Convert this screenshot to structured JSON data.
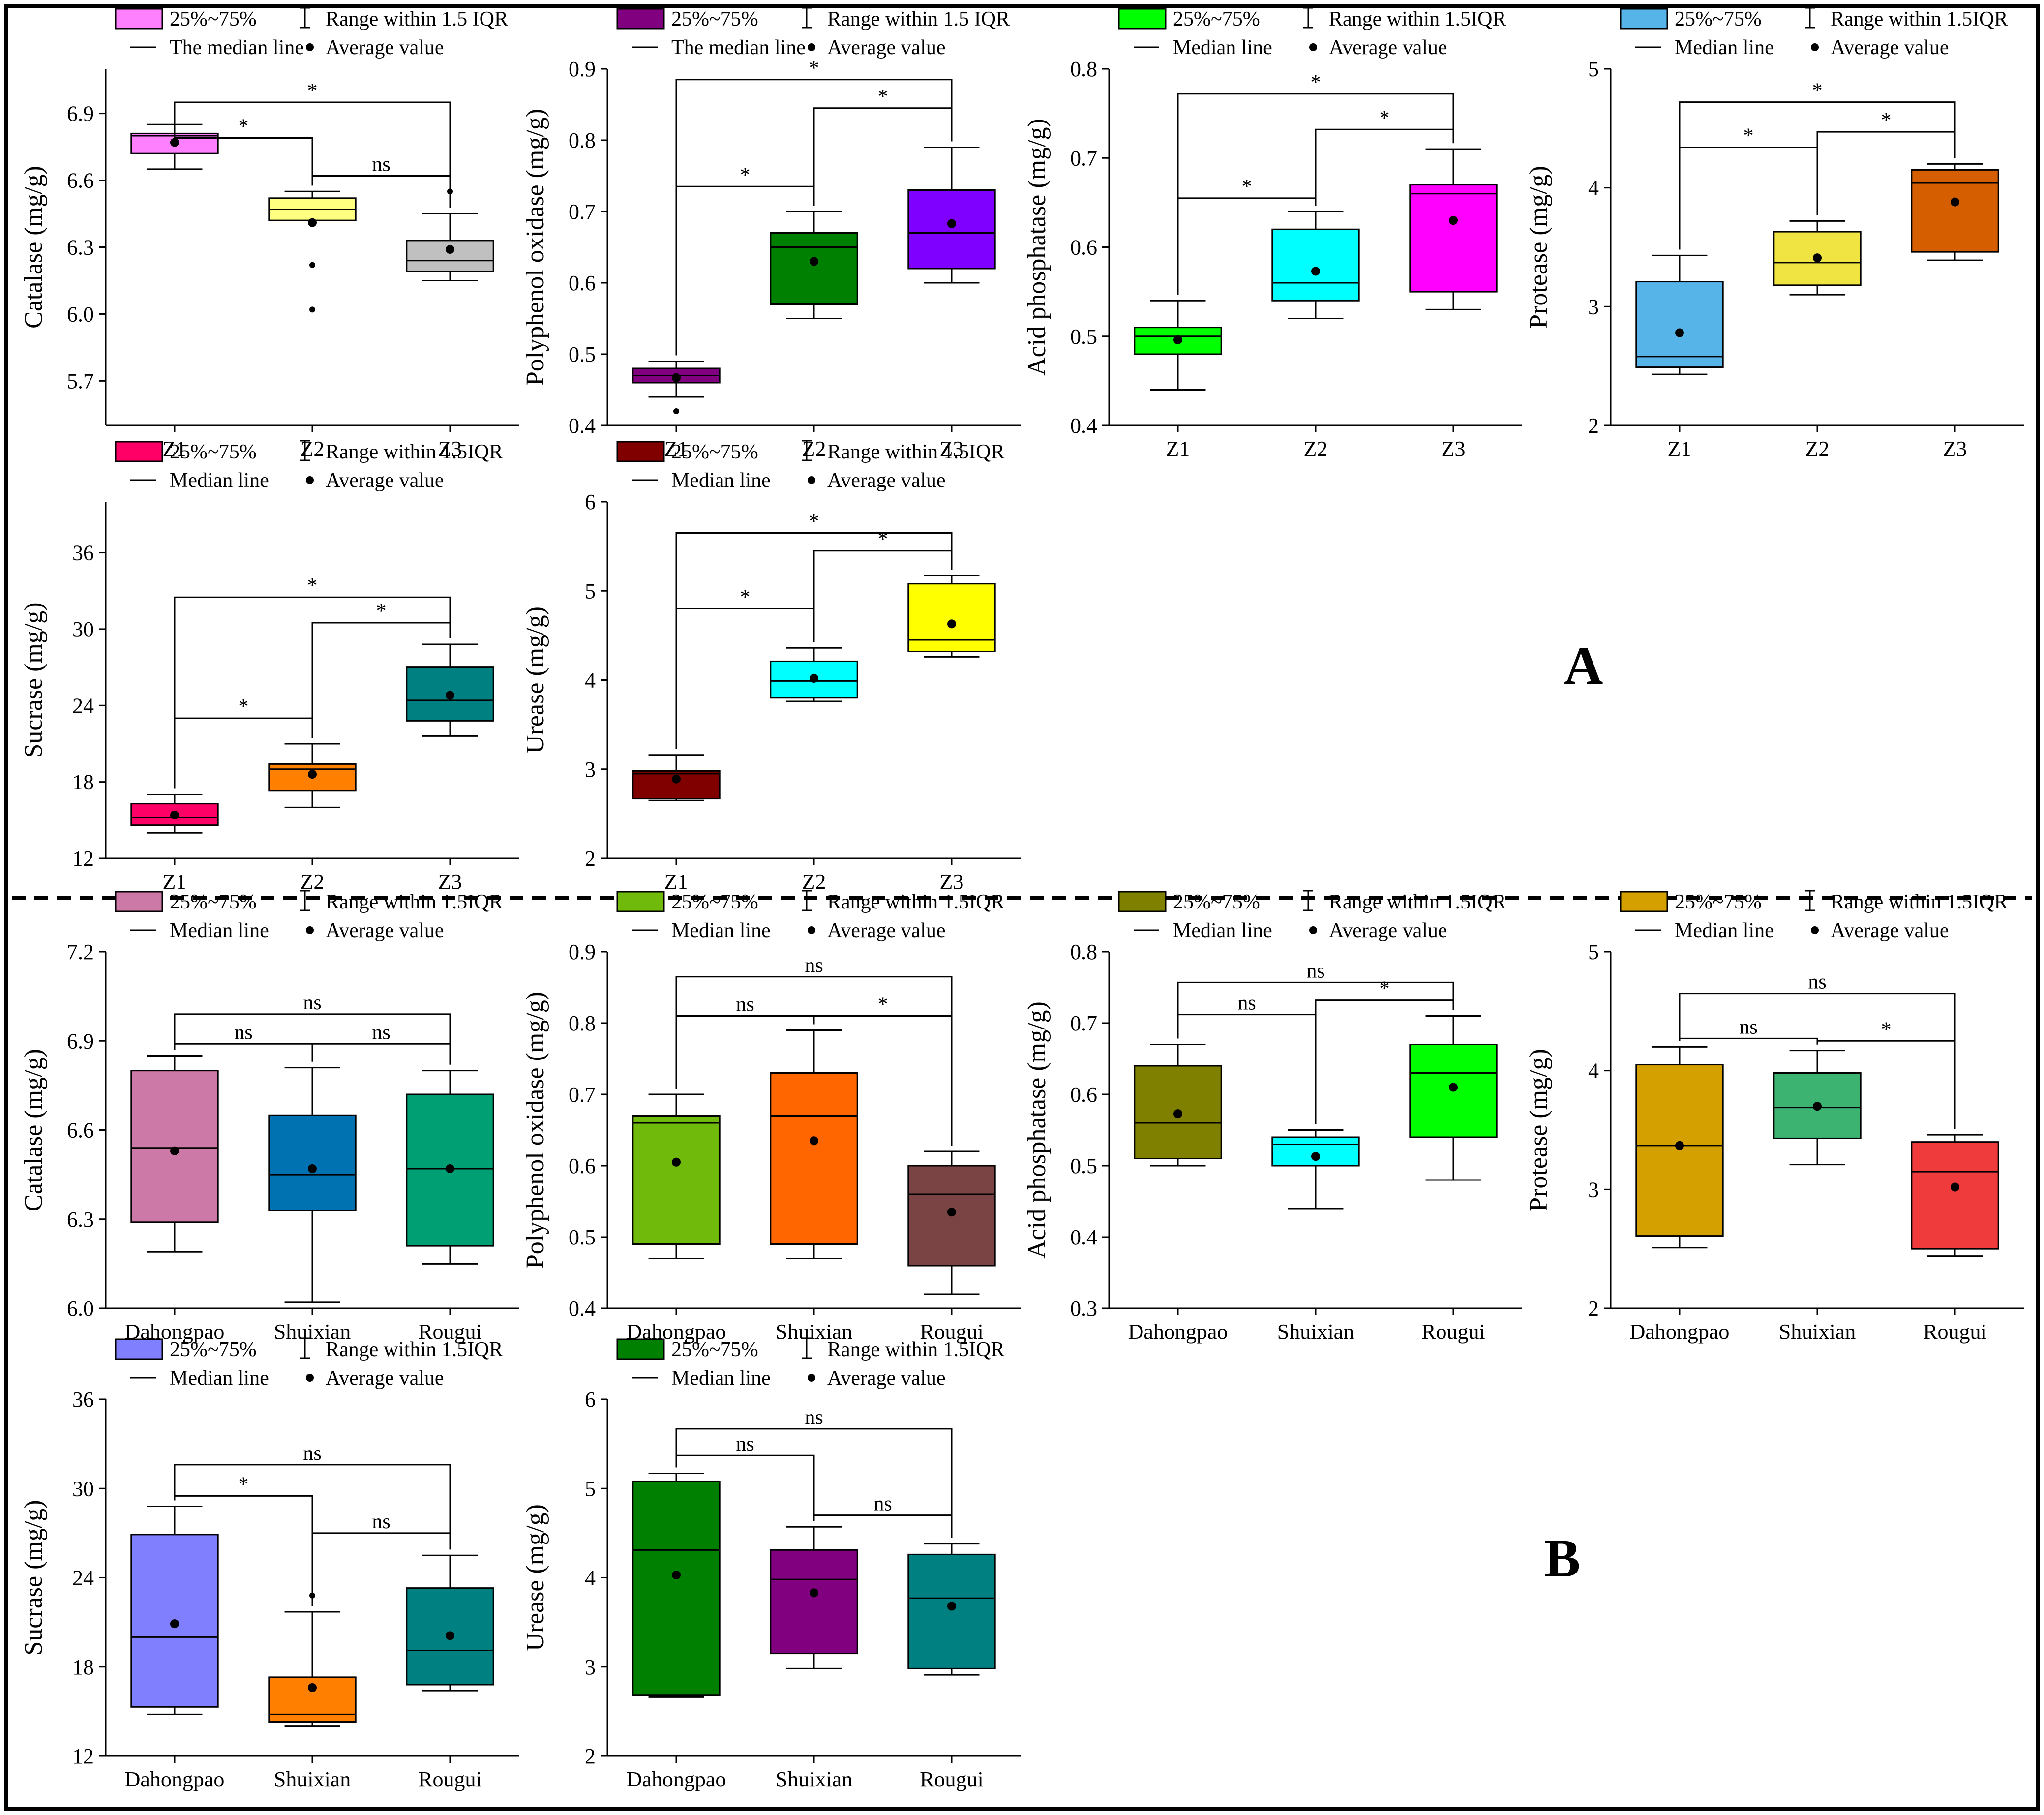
{
  "panel_letters": [
    "A",
    "B"
  ],
  "legend_symbols": {
    "box": "■",
    "whisker": "⌶",
    "median": "—",
    "mean": "●"
  },
  "chart_data": [
    {
      "id": "A-catalase",
      "type": "box",
      "panel": "A",
      "ylabel": "Catalase (mg/g)",
      "ylim": [
        5.5,
        7.1
      ],
      "yticks": [
        "5.7",
        "6.0",
        "6.3",
        "6.6",
        "6.9"
      ],
      "categories": [
        "Z1",
        "Z2",
        "Z3"
      ],
      "legend": [
        "25%~75%",
        "Range within 1.5 IQR",
        "The median line",
        "Average value"
      ],
      "boxes": [
        {
          "q1": 6.72,
          "q3": 6.81,
          "median": 6.8,
          "mean": 6.77,
          "lo": 6.65,
          "hi": 6.85,
          "outliers": [],
          "color": "#ff80ff"
        },
        {
          "q1": 6.42,
          "q3": 6.52,
          "median": 6.47,
          "mean": 6.41,
          "lo": 6.42,
          "hi": 6.55,
          "outliers": [
            6.22,
            6.02
          ],
          "color": "#ffff80"
        },
        {
          "q1": 6.19,
          "q3": 6.33,
          "median": 6.24,
          "mean": 6.29,
          "lo": 6.15,
          "hi": 6.45,
          "outliers": [
            6.55
          ],
          "color": "#c0c0c0"
        }
      ],
      "brackets": [
        {
          "from": 0,
          "to": 1,
          "label": "*",
          "y": 6.79
        },
        {
          "from": 1,
          "to": 2,
          "label": "ns",
          "y": 6.62
        },
        {
          "from": 0,
          "to": 2,
          "label": "*",
          "y": 6.95
        }
      ]
    },
    {
      "id": "A-polyphenol-oxidase",
      "type": "box",
      "panel": "A",
      "ylabel": "Polyphenol oxidase (mg/g)",
      "ylim": [
        0.4,
        0.9
      ],
      "yticks": [
        "0.4",
        "0.5",
        "0.6",
        "0.7",
        "0.8",
        "0.9"
      ],
      "categories": [
        "Z1",
        "Z2",
        "Z3"
      ],
      "legend": [
        "25%~75%",
        "Range within 1.5 IQR",
        "The median line",
        "Average value"
      ],
      "boxes": [
        {
          "q1": 0.46,
          "q3": 0.48,
          "median": 0.47,
          "mean": 0.467,
          "lo": 0.44,
          "hi": 0.49,
          "outliers": [
            0.42
          ],
          "color": "#800080"
        },
        {
          "q1": 0.57,
          "q3": 0.67,
          "median": 0.65,
          "mean": 0.63,
          "lo": 0.55,
          "hi": 0.7,
          "outliers": [],
          "color": "#008000"
        },
        {
          "q1": 0.62,
          "q3": 0.73,
          "median": 0.67,
          "mean": 0.683,
          "lo": 0.6,
          "hi": 0.79,
          "outliers": [],
          "color": "#8000ff"
        }
      ],
      "brackets": [
        {
          "from": 0,
          "to": 1,
          "label": "*",
          "y": 0.735
        },
        {
          "from": 1,
          "to": 2,
          "label": "*",
          "y": 0.845
        },
        {
          "from": 0,
          "to": 2,
          "label": "*",
          "y": 0.885
        }
      ]
    },
    {
      "id": "A-acid-phosphatase",
      "type": "box",
      "panel": "A",
      "ylabel": "Acid phosphatase (mg/g)",
      "ylim": [
        0.4,
        0.8
      ],
      "yticks": [
        "0.4",
        "0.5",
        "0.6",
        "0.7",
        "0.8"
      ],
      "categories": [
        "Z1",
        "Z2",
        "Z3"
      ],
      "legend": [
        "25%~75%",
        "Range within 1.5IQR",
        "Median line",
        "Average value"
      ],
      "boxes": [
        {
          "q1": 0.48,
          "q3": 0.51,
          "median": 0.5,
          "mean": 0.496,
          "lo": 0.44,
          "hi": 0.54,
          "outliers": [],
          "color": "#00ff00"
        },
        {
          "q1": 0.54,
          "q3": 0.62,
          "median": 0.56,
          "mean": 0.573,
          "lo": 0.52,
          "hi": 0.64,
          "outliers": [],
          "color": "#00ffff"
        },
        {
          "q1": 0.55,
          "q3": 0.67,
          "median": 0.66,
          "mean": 0.63,
          "lo": 0.53,
          "hi": 0.71,
          "outliers": [],
          "color": "#ff00ff"
        }
      ],
      "brackets": [
        {
          "from": 0,
          "to": 1,
          "label": "*",
          "y": 0.655
        },
        {
          "from": 1,
          "to": 2,
          "label": "*",
          "y": 0.732
        },
        {
          "from": 0,
          "to": 2,
          "label": "*",
          "y": 0.772
        }
      ]
    },
    {
      "id": "A-protease",
      "type": "box",
      "panel": "A",
      "ylabel": "Protease (mg/g)",
      "ylim": [
        2,
        5
      ],
      "yticks": [
        "2",
        "3",
        "4",
        "5"
      ],
      "categories": [
        "Z1",
        "Z2",
        "Z3"
      ],
      "legend": [
        "25%~75%",
        "Range within 1.5IQR",
        "Median line",
        "Average value"
      ],
      "boxes": [
        {
          "q1": 2.49,
          "q3": 3.21,
          "median": 2.58,
          "mean": 2.78,
          "lo": 2.43,
          "hi": 3.43,
          "outliers": [],
          "color": "#56b4e9"
        },
        {
          "q1": 3.18,
          "q3": 3.63,
          "median": 3.37,
          "mean": 3.41,
          "lo": 3.1,
          "hi": 3.72,
          "outliers": [],
          "color": "#f0e442"
        },
        {
          "q1": 3.46,
          "q3": 4.15,
          "median": 4.04,
          "mean": 3.88,
          "lo": 3.39,
          "hi": 4.2,
          "outliers": [],
          "color": "#d55e00"
        }
      ],
      "brackets": [
        {
          "from": 0,
          "to": 1,
          "label": "*",
          "y": 4.34
        },
        {
          "from": 1,
          "to": 2,
          "label": "*",
          "y": 4.47
        },
        {
          "from": 0,
          "to": 2,
          "label": "*",
          "y": 4.72
        }
      ]
    },
    {
      "id": "A-sucrase",
      "type": "box",
      "panel": "A",
      "ylabel": "Sucrase (mg/g)",
      "ylim": [
        12,
        40
      ],
      "yticks": [
        "12",
        "18",
        "24",
        "30",
        "36"
      ],
      "categories": [
        "Z1",
        "Z2",
        "Z3"
      ],
      "legend": [
        "25%~75%",
        "Range within 1.5IQR",
        "Median line",
        "Average value"
      ],
      "boxes": [
        {
          "q1": 14.6,
          "q3": 16.3,
          "median": 15.2,
          "mean": 15.4,
          "lo": 14.0,
          "hi": 17.0,
          "outliers": [],
          "color": "#ff0066"
        },
        {
          "q1": 17.3,
          "q3": 19.4,
          "median": 19.0,
          "mean": 18.6,
          "lo": 16.0,
          "hi": 21.0,
          "outliers": [],
          "color": "#ff8000"
        },
        {
          "q1": 22.8,
          "q3": 27.0,
          "median": 24.4,
          "mean": 24.8,
          "lo": 21.6,
          "hi": 28.8,
          "outliers": [],
          "color": "#008080"
        }
      ],
      "brackets": [
        {
          "from": 0,
          "to": 1,
          "label": "*",
          "y": 23.0
        },
        {
          "from": 1,
          "to": 2,
          "label": "*",
          "y": 30.5
        },
        {
          "from": 0,
          "to": 2,
          "label": "*",
          "y": 32.5
        }
      ]
    },
    {
      "id": "A-urease",
      "type": "box",
      "panel": "A",
      "ylabel": "Urease (mg/g)",
      "ylim": [
        2,
        6
      ],
      "yticks": [
        "2",
        "3",
        "4",
        "5",
        "6"
      ],
      "categories": [
        "Z1",
        "Z2",
        "Z3"
      ],
      "legend": [
        "25%~75%",
        "Range within 1.5IQR",
        "Median line",
        "Average value"
      ],
      "boxes": [
        {
          "q1": 2.67,
          "q3": 2.98,
          "median": 2.95,
          "mean": 2.89,
          "lo": 2.65,
          "hi": 3.16,
          "outliers": [],
          "color": "#800000"
        },
        {
          "q1": 3.8,
          "q3": 4.21,
          "median": 3.99,
          "mean": 4.02,
          "lo": 3.76,
          "hi": 4.36,
          "outliers": [],
          "color": "#00ffff"
        },
        {
          "q1": 4.32,
          "q3": 5.08,
          "median": 4.45,
          "mean": 4.63,
          "lo": 4.26,
          "hi": 5.17,
          "outliers": [],
          "color": "#ffff00"
        }
      ],
      "brackets": [
        {
          "from": 0,
          "to": 1,
          "label": "*",
          "y": 4.8
        },
        {
          "from": 1,
          "to": 2,
          "label": "*",
          "y": 5.45
        },
        {
          "from": 0,
          "to": 2,
          "label": "*",
          "y": 5.65
        }
      ]
    },
    {
      "id": "B-catalase",
      "type": "box",
      "panel": "B",
      "ylabel": "Catalase (mg/g)",
      "ylim": [
        6.0,
        7.2
      ],
      "yticks": [
        "6.0",
        "6.3",
        "6.6",
        "6.9",
        "7.2"
      ],
      "categories": [
        "Dahongpao",
        "Shuixian",
        "Rougui"
      ],
      "legend": [
        "25%~75%",
        "Range within 1.5IQR",
        "Median line",
        "Average value"
      ],
      "boxes": [
        {
          "q1": 6.29,
          "q3": 6.8,
          "median": 6.54,
          "mean": 6.53,
          "lo": 6.19,
          "hi": 6.85,
          "outliers": [],
          "color": "#cc79a7"
        },
        {
          "q1": 6.33,
          "q3": 6.65,
          "median": 6.45,
          "mean": 6.47,
          "lo": 6.02,
          "hi": 6.81,
          "outliers": [],
          "color": "#0072b2"
        },
        {
          "q1": 6.21,
          "q3": 6.72,
          "median": 6.47,
          "mean": 6.47,
          "lo": 6.15,
          "hi": 6.8,
          "outliers": [],
          "color": "#009e73"
        }
      ],
      "brackets": [
        {
          "from": 0,
          "to": 1,
          "label": "ns",
          "y": 6.89
        },
        {
          "from": 1,
          "to": 2,
          "label": "ns",
          "y": 6.89
        },
        {
          "from": 0,
          "to": 2,
          "label": "ns",
          "y": 6.99
        }
      ]
    },
    {
      "id": "B-polyphenol-oxidase",
      "type": "box",
      "panel": "B",
      "ylabel": "Polyphenol oxidase (mg/g)",
      "ylim": [
        0.4,
        0.9
      ],
      "yticks": [
        "0.4",
        "0.5",
        "0.6",
        "0.7",
        "0.8",
        "0.9"
      ],
      "categories": [
        "Dahongpao",
        "Shuixian",
        "Rougui"
      ],
      "legend": [
        "25%~75%",
        "Range within 1.5IQR",
        "Median line",
        "Average value"
      ],
      "boxes": [
        {
          "q1": 0.49,
          "q3": 0.67,
          "median": 0.66,
          "mean": 0.605,
          "lo": 0.47,
          "hi": 0.7,
          "outliers": [],
          "color": "#6fba0a"
        },
        {
          "q1": 0.49,
          "q3": 0.73,
          "median": 0.67,
          "mean": 0.635,
          "lo": 0.47,
          "hi": 0.79,
          "outliers": [],
          "color": "#ff6600"
        },
        {
          "q1": 0.46,
          "q3": 0.6,
          "median": 0.56,
          "mean": 0.535,
          "lo": 0.42,
          "hi": 0.62,
          "outliers": [],
          "color": "#7b4444"
        }
      ],
      "brackets": [
        {
          "from": 0,
          "to": 1,
          "label": "ns",
          "y": 0.81
        },
        {
          "from": 1,
          "to": 2,
          "label": "*",
          "y": 0.81
        },
        {
          "from": 0,
          "to": 2,
          "label": "ns",
          "y": 0.865
        }
      ]
    },
    {
      "id": "B-acid-phosphatase",
      "type": "box",
      "panel": "B",
      "ylabel": "Acid phosphatase (mg/g)",
      "ylim": [
        0.3,
        0.8
      ],
      "yticks": [
        "0.3",
        "0.4",
        "0.5",
        "0.6",
        "0.7",
        "0.8"
      ],
      "categories": [
        "Dahongpao",
        "Shuixian",
        "Rougui"
      ],
      "legend": [
        "25%~75%",
        "Range within 1.5IQR",
        "Median line",
        "Average value"
      ],
      "boxes": [
        {
          "q1": 0.51,
          "q3": 0.64,
          "median": 0.56,
          "mean": 0.573,
          "lo": 0.5,
          "hi": 0.67,
          "outliers": [],
          "color": "#808000"
        },
        {
          "q1": 0.5,
          "q3": 0.54,
          "median": 0.53,
          "mean": 0.513,
          "lo": 0.44,
          "hi": 0.55,
          "outliers": [],
          "color": "#00ffff"
        },
        {
          "q1": 0.54,
          "q3": 0.67,
          "median": 0.63,
          "mean": 0.61,
          "lo": 0.48,
          "hi": 0.71,
          "outliers": [],
          "color": "#00ff00"
        }
      ],
      "brackets": [
        {
          "from": 0,
          "to": 1,
          "label": "ns",
          "y": 0.712
        },
        {
          "from": 1,
          "to": 2,
          "label": "*",
          "y": 0.732
        },
        {
          "from": 0,
          "to": 2,
          "label": "ns",
          "y": 0.757
        }
      ]
    },
    {
      "id": "B-protease",
      "type": "box",
      "panel": "B",
      "ylabel": "Protease (mg/g)",
      "ylim": [
        2,
        5
      ],
      "yticks": [
        "2",
        "3",
        "4",
        "5"
      ],
      "categories": [
        "Dahongpao",
        "Shuixian",
        "Rougui"
      ],
      "legend": [
        "25%~75%",
        "Range within 1.5IQR",
        "Median line",
        "Average value"
      ],
      "boxes": [
        {
          "q1": 2.61,
          "q3": 4.05,
          "median": 3.37,
          "mean": 3.37,
          "lo": 2.51,
          "hi": 4.2,
          "outliers": [],
          "color": "#d4a000"
        },
        {
          "q1": 3.43,
          "q3": 3.98,
          "median": 3.69,
          "mean": 3.7,
          "lo": 3.21,
          "hi": 4.17,
          "outliers": [],
          "color": "#3cb371"
        },
        {
          "q1": 2.5,
          "q3": 3.4,
          "median": 3.15,
          "mean": 3.02,
          "lo": 2.44,
          "hi": 3.46,
          "outliers": [],
          "color": "#ef3b3b"
        }
      ],
      "brackets": [
        {
          "from": 0,
          "to": 1,
          "label": "ns",
          "y": 4.27
        },
        {
          "from": 1,
          "to": 2,
          "label": "*",
          "y": 4.25
        },
        {
          "from": 0,
          "to": 2,
          "label": "ns",
          "y": 4.65
        }
      ]
    },
    {
      "id": "B-sucrase",
      "type": "box",
      "panel": "B",
      "ylabel": "Sucrase (mg/g)",
      "ylim": [
        12,
        36
      ],
      "yticks": [
        "12",
        "18",
        "24",
        "30",
        "36"
      ],
      "categories": [
        "Dahongpao",
        "Shuixian",
        "Rougui"
      ],
      "legend": [
        "25%~75%",
        "Range within 1.5IQR",
        "Median line",
        "Average value"
      ],
      "boxes": [
        {
          "q1": 15.3,
          "q3": 26.9,
          "median": 20.0,
          "mean": 20.9,
          "lo": 14.8,
          "hi": 28.8,
          "outliers": [],
          "color": "#8080ff"
        },
        {
          "q1": 14.3,
          "q3": 17.3,
          "median": 14.8,
          "mean": 16.6,
          "lo": 14.0,
          "hi": 21.7,
          "outliers": [
            22.8
          ],
          "color": "#ff8000"
        },
        {
          "q1": 16.8,
          "q3": 23.3,
          "median": 19.1,
          "mean": 20.1,
          "lo": 16.4,
          "hi": 25.5,
          "outliers": [],
          "color": "#008080"
        }
      ],
      "brackets": [
        {
          "from": 0,
          "to": 1,
          "label": "*",
          "y": 29.5
        },
        {
          "from": 1,
          "to": 2,
          "label": "ns",
          "y": 27.0
        },
        {
          "from": 0,
          "to": 2,
          "label": "ns",
          "y": 31.6
        }
      ]
    },
    {
      "id": "B-urease",
      "type": "box",
      "panel": "B",
      "ylabel": "Urease (mg/g)",
      "ylim": [
        2,
        6
      ],
      "yticks": [
        "2",
        "3",
        "4",
        "5",
        "6"
      ],
      "categories": [
        "Dahongpao",
        "Shuixian",
        "Rougui"
      ],
      "legend": [
        "25%~75%",
        "Range within 1.5IQR",
        "Median line",
        "Average value"
      ],
      "boxes": [
        {
          "q1": 2.68,
          "q3": 5.08,
          "median": 4.31,
          "mean": 4.03,
          "lo": 2.66,
          "hi": 5.17,
          "outliers": [],
          "color": "#008000"
        },
        {
          "q1": 3.15,
          "q3": 4.31,
          "median": 3.98,
          "mean": 3.83,
          "lo": 2.98,
          "hi": 4.57,
          "outliers": [],
          "color": "#800080"
        },
        {
          "q1": 2.98,
          "q3": 4.26,
          "median": 3.77,
          "mean": 3.68,
          "lo": 2.91,
          "hi": 4.38,
          "outliers": [],
          "color": "#008080"
        }
      ],
      "brackets": [
        {
          "from": 0,
          "to": 1,
          "label": "ns",
          "y": 5.37
        },
        {
          "from": 1,
          "to": 2,
          "label": "ns",
          "y": 4.7
        },
        {
          "from": 0,
          "to": 2,
          "label": "ns",
          "y": 5.67
        }
      ]
    }
  ]
}
